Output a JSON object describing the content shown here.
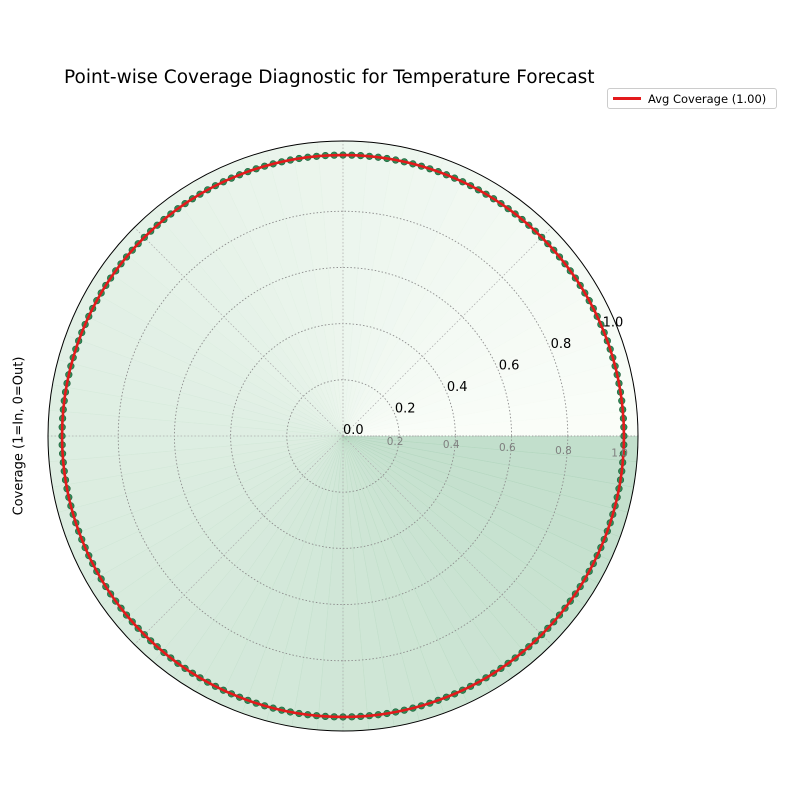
{
  "chart_data": {
    "type": "polar-line",
    "title": "Point-wise Coverage Diagnostic for Temperature Forecast",
    "ylabel": "Coverage (1=In, 0=Out)",
    "rlim": [
      0,
      1.05
    ],
    "r_ticks": [
      "0.0",
      "0.2",
      "0.4",
      "0.6",
      "0.8",
      "1.0"
    ],
    "secondary_r_ticks": [
      "0.2",
      "0.4",
      "0.6",
      "0.8",
      "1.0"
    ],
    "grid": true,
    "legend": {
      "label": "Avg Coverage (1.00)",
      "placement": "top-right"
    },
    "series": [
      {
        "name": "Avg Coverage (1.00)",
        "kind": "line",
        "color": "#e31a1c",
        "r_constant": 1.0
      },
      {
        "kind": "markers",
        "color": "#2e8b57",
        "r_constant": 1.0,
        "n_points": 200
      }
    ],
    "background_fill": {
      "colormap_low": "#f7fcf5",
      "colormap_high": "#99c9a9",
      "opacity": 0.6
    }
  }
}
